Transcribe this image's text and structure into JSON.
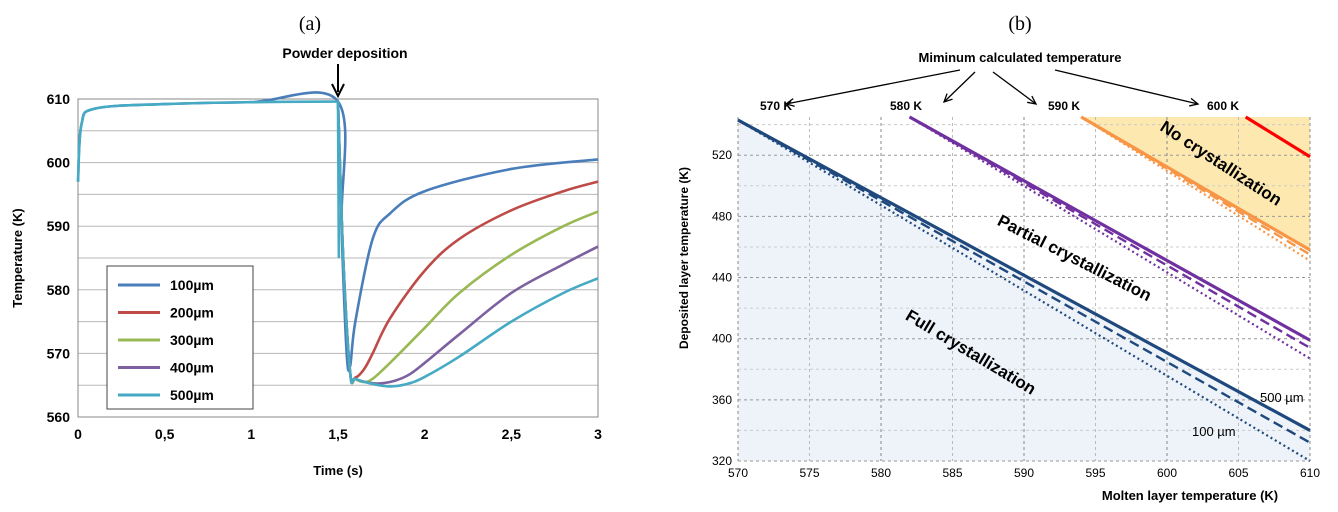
{
  "chart_data": [
    {
      "type": "line",
      "panel_label": "(a)",
      "annotation": "Powder deposition",
      "xlabel": "Time (s)",
      "ylabel": "Temperature  (K)",
      "xlim": [
        0,
        3
      ],
      "ylim": [
        560,
        610
      ],
      "x_ticks": [
        "0",
        "0,5",
        "1",
        "1,5",
        "2",
        "2,5",
        "3"
      ],
      "y_ticks": [
        "560",
        "570",
        "580",
        "590",
        "600",
        "610"
      ],
      "grid": "horizontal",
      "legend": "bottom-left",
      "colors": [
        "#4a7ebb",
        "#be4b48",
        "#98b954",
        "#7d60a0",
        "#46aac4"
      ],
      "series": [
        {
          "name": "100µm",
          "x": [
            0,
            0.02,
            0.1,
            0.5,
            1.0,
            1.5,
            1.52,
            1.55,
            1.57,
            1.6,
            1.7,
            1.8,
            2.0,
            2.5,
            3.0
          ],
          "y": [
            597,
            606,
            608.5,
            609.2,
            609.5,
            609.6,
            590,
            570,
            568,
            575,
            588,
            592,
            595.5,
            599,
            600.5
          ]
        },
        {
          "name": "200µm",
          "x": [
            1.5,
            1.53,
            1.57,
            1.6,
            1.65,
            1.7,
            1.8,
            2.0,
            2.2,
            2.5,
            2.8,
            3.0
          ],
          "y": [
            609.6,
            585,
            567,
            566.2,
            567.5,
            570,
            575.5,
            583,
            588,
            592.5,
            595.5,
            597
          ]
        },
        {
          "name": "300µm",
          "x": [
            1.5,
            1.53,
            1.57,
            1.6,
            1.65,
            1.7,
            1.8,
            2.0,
            2.2,
            2.5,
            2.8,
            3.0
          ],
          "y": [
            609.6,
            585,
            567,
            566,
            565.5,
            566,
            568.5,
            574,
            579.5,
            585.5,
            590,
            592.3
          ]
        },
        {
          "name": "400µm",
          "x": [
            1.5,
            1.53,
            1.57,
            1.6,
            1.7,
            1.8,
            1.9,
            2.0,
            2.2,
            2.5,
            2.8,
            3.0
          ],
          "y": [
            609.6,
            585,
            567,
            566,
            565.3,
            565.5,
            566.5,
            568.5,
            573,
            579.5,
            584,
            586.8
          ]
        },
        {
          "name": "500µm",
          "x": [
            1.5,
            1.53,
            1.57,
            1.6,
            1.7,
            1.8,
            1.9,
            2.0,
            2.2,
            2.5,
            2.8,
            3.0
          ],
          "y": [
            609.6,
            585,
            567,
            566,
            565.2,
            564.8,
            565.2,
            566.3,
            569.5,
            575,
            579.5,
            581.8
          ]
        }
      ]
    },
    {
      "type": "line",
      "panel_label": "(b)",
      "title": "Miminum calculated temperature",
      "xlabel": "Molten layer temperature (K)",
      "ylabel": "Deposited layer temperature  (K)",
      "xlim": [
        570,
        610
      ],
      "ylim": [
        320,
        545
      ],
      "x_ticks": [
        "570",
        "575",
        "580",
        "585",
        "590",
        "595",
        "600",
        "605",
        "610"
      ],
      "y_ticks": [
        "320",
        "360",
        "400",
        "440",
        "480",
        "520"
      ],
      "grid": "both-dashed",
      "group_labels": [
        "570 K",
        "580 K",
        "590 K",
        "600 K"
      ],
      "region_labels": {
        "none": "No crystallization",
        "partial": "Partial crystallization",
        "full": "Full crystallization"
      },
      "thickness_labels": {
        "thick": "500 µm",
        "thin": "100 µm"
      },
      "colors": {
        "570": "#1f497d",
        "580": "#7030a0",
        "590": "#f79646",
        "600": "#ff0000",
        "full_fill": "#eef3fa",
        "none_fill": "#fde9b0"
      },
      "series": [
        {
          "group": "570 K",
          "style": "solid",
          "x": [
            570,
            610
          ],
          "y": [
            543,
            340
          ]
        },
        {
          "group": "570 K",
          "style": "dashed",
          "x": [
            570,
            610
          ],
          "y": [
            543,
            332
          ]
        },
        {
          "group": "570 K",
          "style": "dotted",
          "x": [
            570,
            610
          ],
          "y": [
            543,
            320
          ]
        },
        {
          "group": "580 K",
          "style": "solid",
          "x": [
            582,
            610
          ],
          "y": [
            545,
            399
          ]
        },
        {
          "group": "580 K",
          "style": "dashed",
          "x": [
            582,
            610
          ],
          "y": [
            545,
            394
          ]
        },
        {
          "group": "580 K",
          "style": "dotted",
          "x": [
            582,
            610
          ],
          "y": [
            545,
            387
          ]
        },
        {
          "group": "590 K",
          "style": "solid",
          "x": [
            594,
            610
          ],
          "y": [
            545,
            458
          ]
        },
        {
          "group": "590 K",
          "style": "dashed",
          "x": [
            594,
            610
          ],
          "y": [
            545,
            455
          ]
        },
        {
          "group": "590 K",
          "style": "dotted",
          "x": [
            594,
            610
          ],
          "y": [
            545,
            451
          ]
        },
        {
          "group": "600 K",
          "style": "solid",
          "x": [
            605.5,
            610
          ],
          "y": [
            545,
            519
          ]
        }
      ]
    }
  ]
}
